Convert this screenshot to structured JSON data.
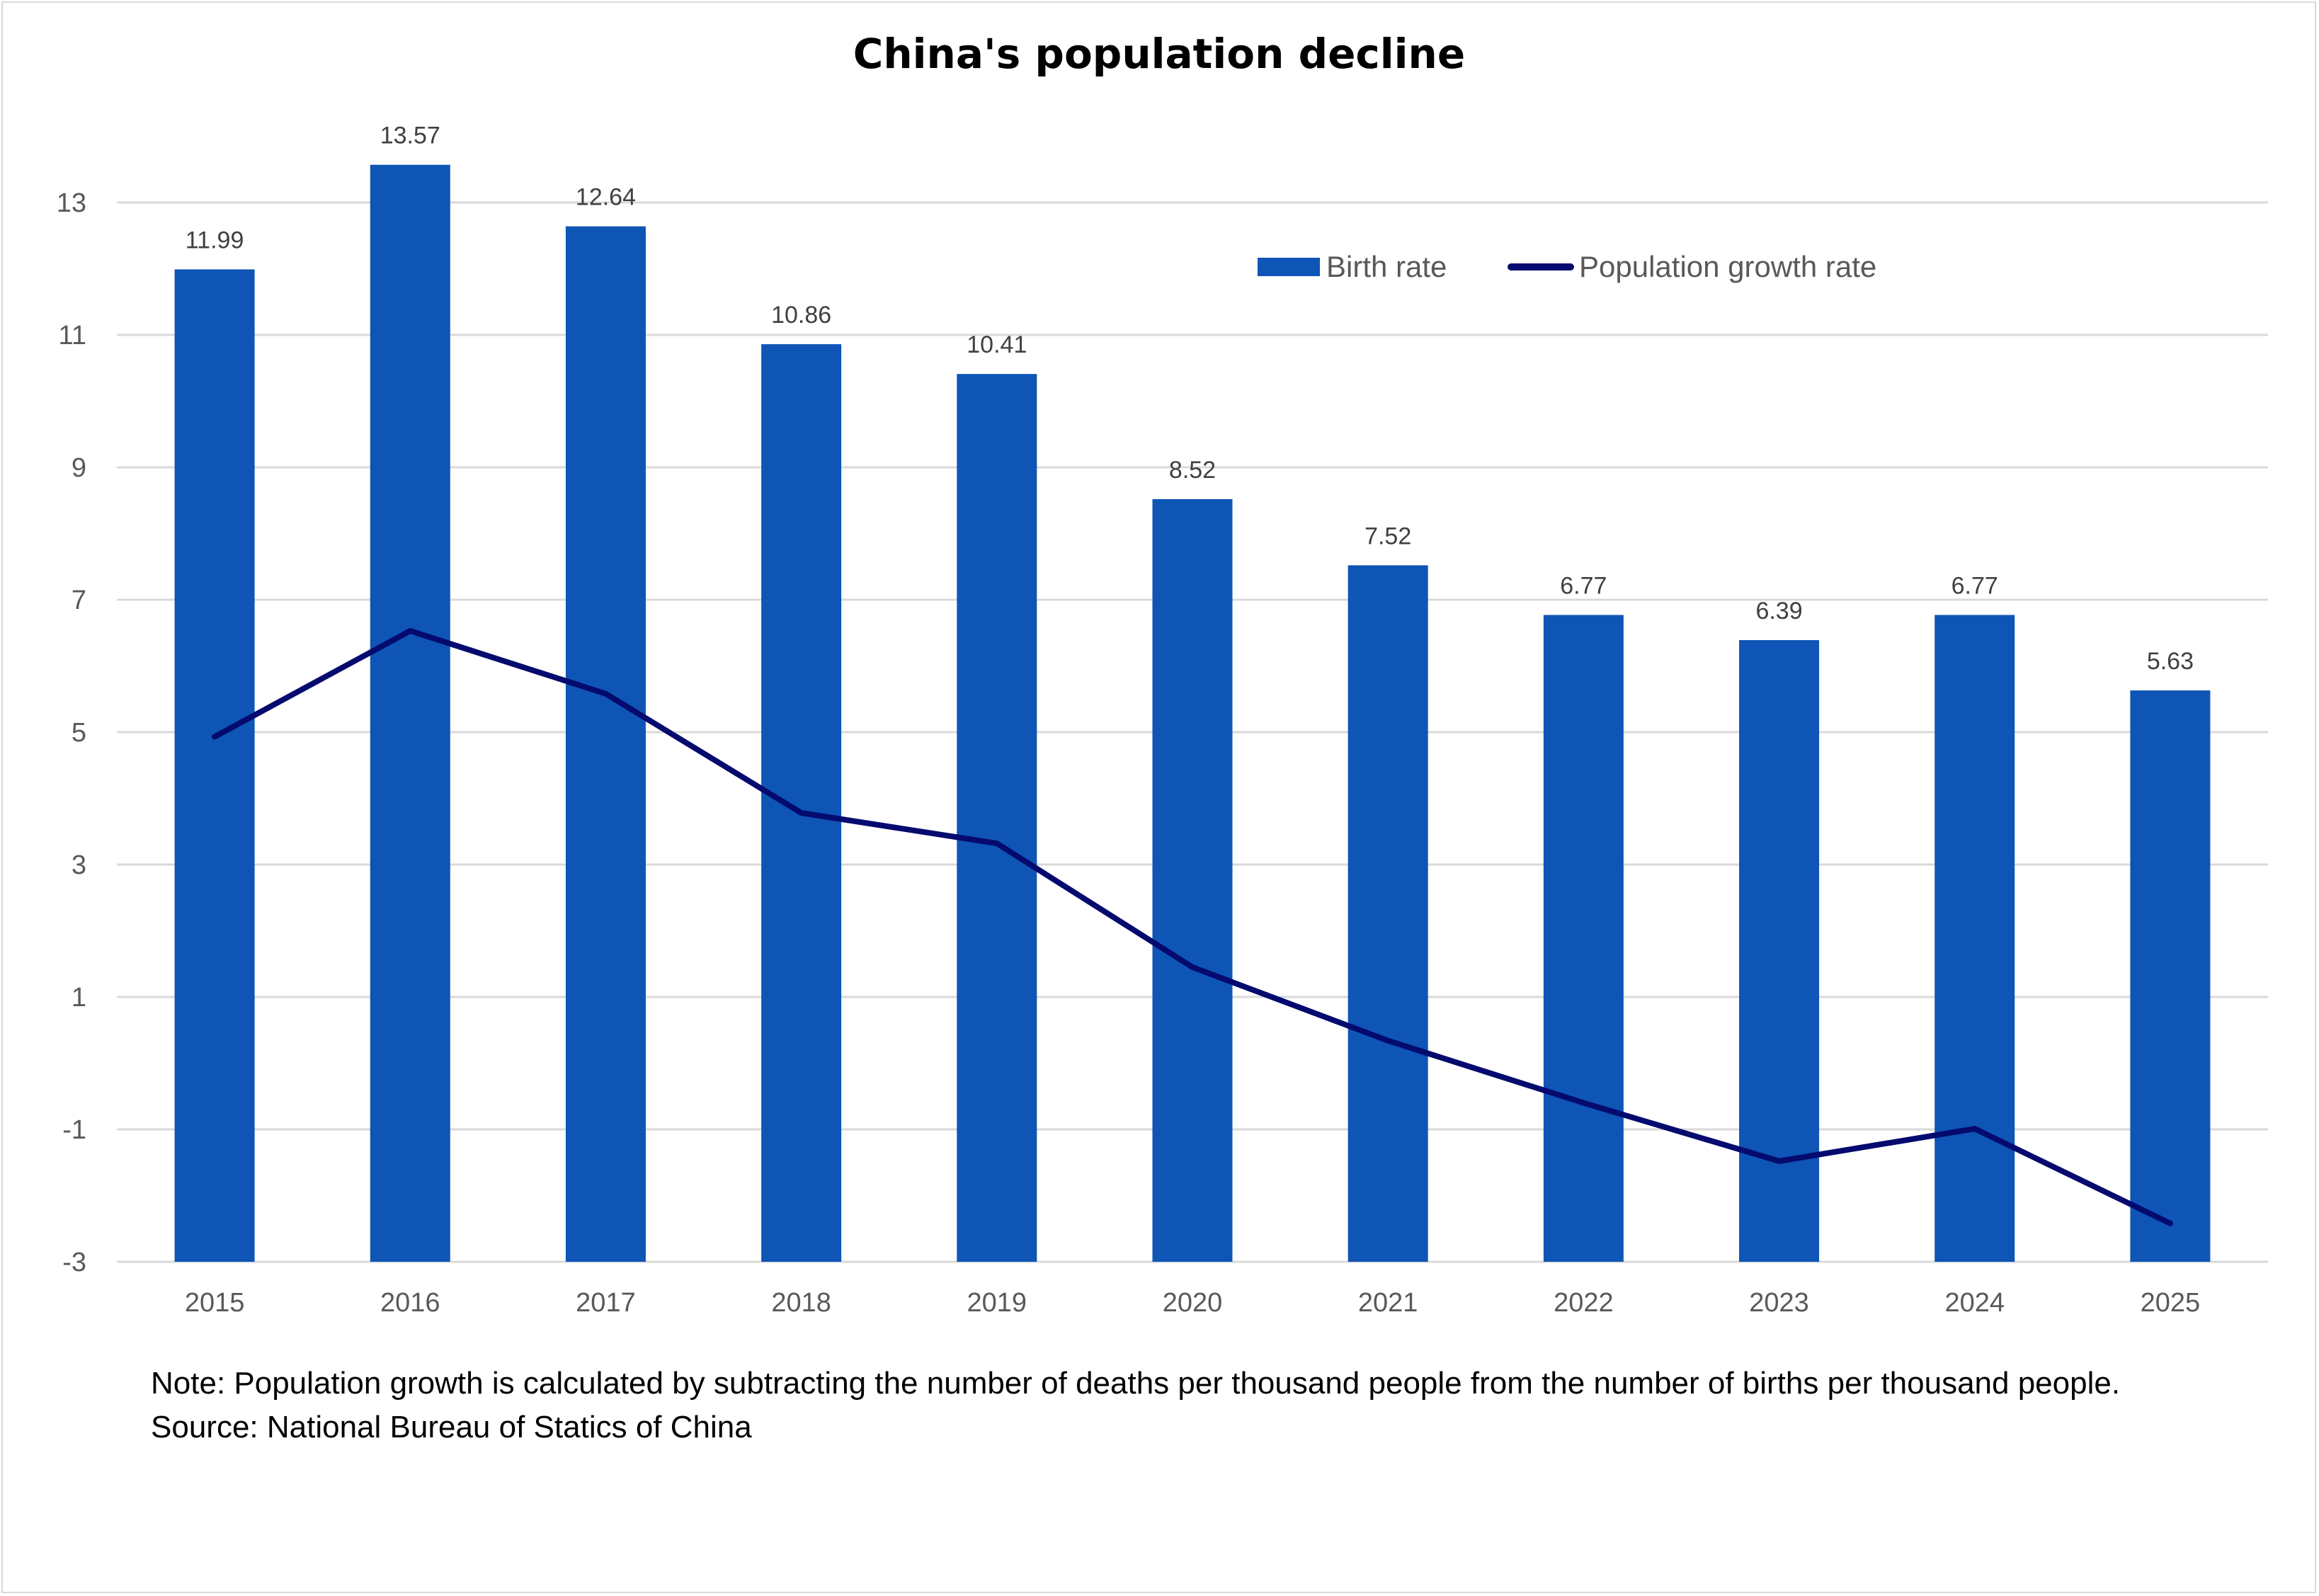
{
  "chart_data": {
    "type": "bar",
    "title": "China's population decline",
    "categories": [
      "2015",
      "2016",
      "2017",
      "2018",
      "2019",
      "2020",
      "2021",
      "2022",
      "2023",
      "2024",
      "2025"
    ],
    "series": [
      {
        "name": "Birth rate",
        "type": "bar",
        "color": "#0E55B6",
        "values": [
          11.99,
          13.57,
          12.64,
          10.86,
          10.41,
          8.52,
          7.52,
          6.77,
          6.39,
          6.77,
          5.63
        ],
        "labels": [
          "11.99",
          "13.57",
          "12.64",
          "10.86",
          "10.41",
          "8.52",
          "7.52",
          "6.77",
          "6.39",
          "6.77",
          "5.63"
        ]
      },
      {
        "name": "Population growth rate",
        "type": "line",
        "color": "#040A6E",
        "values": [
          4.93,
          6.53,
          5.58,
          3.78,
          3.32,
          1.45,
          0.34,
          -0.6,
          -1.48,
          -0.99,
          -2.42
        ]
      }
    ],
    "yticks": [
      "13",
      "11",
      "9",
      "7",
      "5",
      "3",
      "1",
      "-1",
      "-3"
    ],
    "ylim": [
      -3,
      13
    ],
    "xlabel": "",
    "ylabel": "",
    "grid": true,
    "legend": "top-right"
  },
  "footer": {
    "note": "Note: Population growth is calculated by subtracting the number of deaths per thousand people from the number of births per thousand people.",
    "source": "Source: National Bureau of Statics of China"
  }
}
